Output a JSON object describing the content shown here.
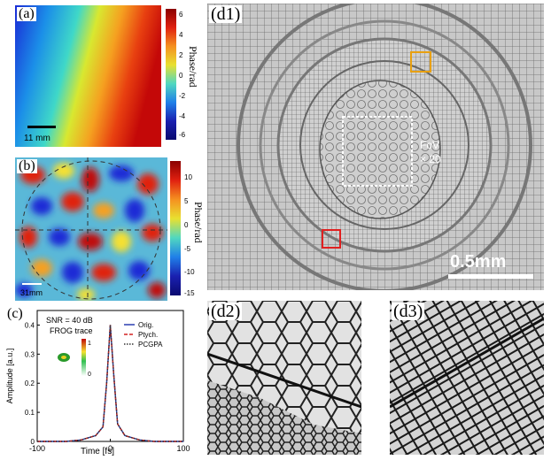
{
  "panels": {
    "a": {
      "label": "(a)",
      "scale_bar": "11 mm",
      "cbar_title": "Phase/rad",
      "cbar_ticks": [
        "6",
        "4",
        "2",
        "0",
        "-2",
        "-4",
        "-6"
      ]
    },
    "b": {
      "label": "(b)",
      "scale_bar": "31mm",
      "cbar_title": "Phase/rad",
      "cbar_ticks": [
        "10",
        "5",
        "0",
        "-5",
        "-10",
        "-15"
      ]
    },
    "c": {
      "label": "(c)",
      "annotation_snr": "SNR = 40 dB",
      "annotation_frog": "FROG trace",
      "inset_ticks": [
        "1",
        "0"
      ],
      "ylabel": "Amplitude [a.u.]",
      "xlabel": "Time [fs]",
      "legend": [
        "Orig.",
        "Ptych.",
        "PCGPA"
      ]
    },
    "d1": {
      "label": "(d1)",
      "fov_line1": "FoV",
      "fov_line2": "× 20",
      "scale_bar": "0.5mm"
    },
    "d2": {
      "label": "(d2)"
    },
    "d3": {
      "label": "(d3)"
    }
  },
  "chart_data": {
    "type": "line",
    "x": [
      -100,
      -80,
      -60,
      -40,
      -20,
      -10,
      -5,
      0,
      5,
      10,
      20,
      40,
      60,
      80,
      100
    ],
    "series": [
      {
        "name": "Orig.",
        "color": "#2b3fb0",
        "values": [
          0,
          0,
          0,
          0.005,
          0.02,
          0.05,
          0.2,
          0.4,
          0.22,
          0.06,
          0.02,
          0.005,
          0,
          0,
          0
        ]
      },
      {
        "name": "Ptych.",
        "color": "#d42020",
        "values": [
          0,
          0,
          0,
          0.005,
          0.02,
          0.05,
          0.2,
          0.4,
          0.22,
          0.06,
          0.02,
          0.005,
          0,
          0,
          0
        ]
      },
      {
        "name": "PCGPA",
        "color": "#333333",
        "values": [
          0,
          0,
          0,
          0.005,
          0.02,
          0.05,
          0.2,
          0.4,
          0.22,
          0.06,
          0.02,
          0.005,
          0,
          0,
          0
        ]
      }
    ],
    "xticks": [
      "-100",
      "0",
      "100"
    ],
    "yticks": [
      "0",
      "0.1",
      "0.2",
      "0.3",
      "0.4"
    ],
    "xlim": [
      -100,
      100
    ],
    "ylim": [
      0,
      0.45
    ],
    "xlabel": "Time [fs]",
    "ylabel": "Amplitude [a.u.]"
  }
}
